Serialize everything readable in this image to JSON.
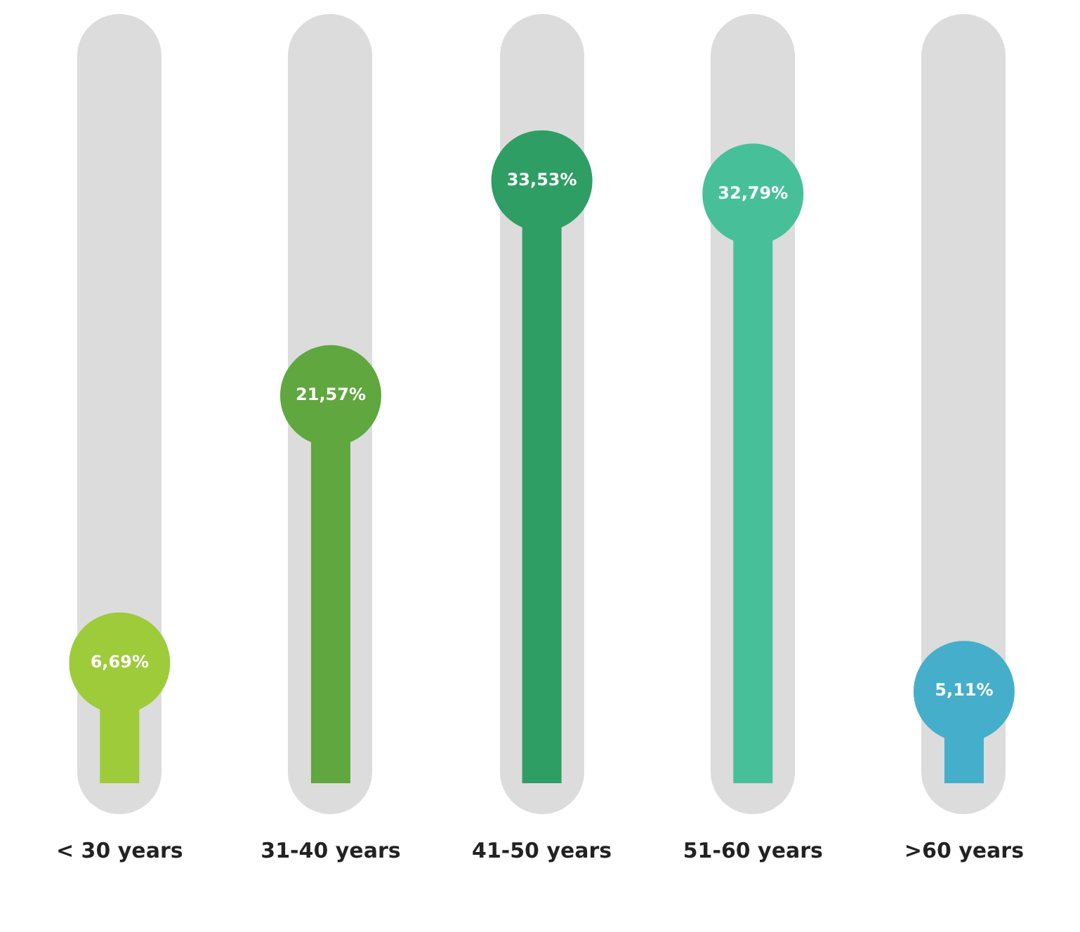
{
  "chart_data": {
    "type": "lollipop",
    "categories": [
      "< 30 years",
      "31-40 years",
      "41-50 years",
      "51-60 years",
      ">60 years"
    ],
    "values": [
      6.69,
      21.57,
      33.53,
      32.79,
      5.11
    ],
    "value_labels": [
      "6,69%",
      "21,57%",
      "33,53%",
      "32,79%",
      "5,11%"
    ],
    "colors": [
      "#9dcb3a",
      "#5fa73e",
      "#2e9e64",
      "#47c09a",
      "#45aecb"
    ],
    "grid": false,
    "legend": false
  }
}
